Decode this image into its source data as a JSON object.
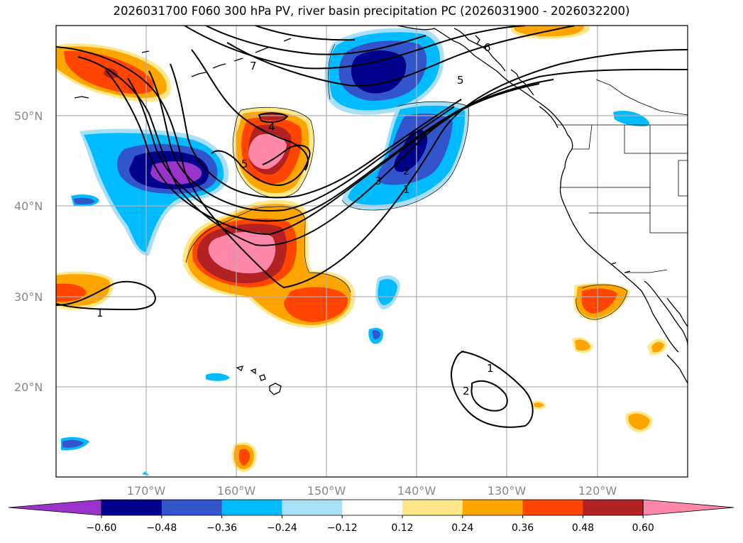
{
  "title": "2026031700 F060 300 hPa PV, river basin precipitation PC (2026031900 - 2026032200)",
  "lat_labels": [
    "50°N",
    "40°N",
    "30°N",
    "20°N"
  ],
  "lon_labels": [
    "170°W",
    "160°W",
    "150°W",
    "140°W",
    "130°W",
    "120°W"
  ],
  "colorbar": {
    "colors": [
      "#9933cc",
      "#00008b",
      "#3355cc",
      "#00bbff",
      "#aadff8",
      "#ffffff",
      "#ffe88a",
      "#ffa500",
      "#ff4500",
      "#b22222",
      "#ff88aa"
    ],
    "tick_labels": [
      "−0.60",
      "−0.48",
      "−0.36",
      "−0.24",
      "−0.12",
      "0.12",
      "0.24",
      "0.36",
      "0.48",
      "0.60"
    ]
  },
  "contour_labels": [
    "7",
    "6",
    "5",
    "4",
    "5",
    "3",
    "2",
    "1",
    "1",
    "1",
    "2"
  ],
  "colors": {
    "grid": "#b0b0b0",
    "frame": "#000000"
  }
}
